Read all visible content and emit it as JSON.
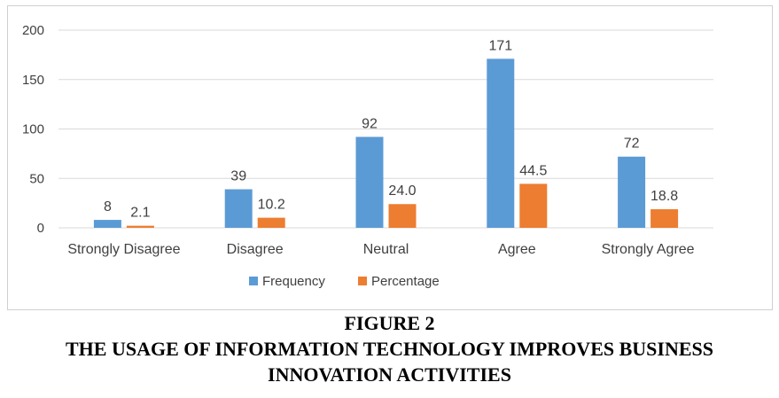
{
  "figure": {
    "number": "FIGURE 2",
    "title": "THE USAGE OF INFORMATION TECHNOLOGY IMPROVES BUSINESS INNOVATION ACTIVITIES"
  },
  "colors": {
    "frequency": "#5b9bd5",
    "percentage": "#ed7d31",
    "grid": "#d9d9d9",
    "text": "#404040"
  },
  "chart_data": {
    "type": "bar",
    "title": "",
    "xlabel": "",
    "ylabel": "",
    "categories": [
      "Strongly Disagree",
      "Disagree",
      "Neutral",
      "Agree",
      "Strongly Agree"
    ],
    "series": [
      {
        "name": "Frequency",
        "values": [
          8,
          39,
          92,
          171,
          72
        ],
        "labels": [
          "8",
          "39",
          "92",
          "171",
          "72"
        ]
      },
      {
        "name": "Percentage",
        "values": [
          2.1,
          10.2,
          24.0,
          44.5,
          18.8
        ],
        "labels": [
          "2.1",
          "10.2",
          "24.0",
          "44.5",
          "18.8"
        ]
      }
    ],
    "ylim": [
      0,
      200
    ],
    "yticks": [
      0,
      50,
      100,
      150,
      200
    ],
    "grid": true,
    "legend": "bottom"
  }
}
